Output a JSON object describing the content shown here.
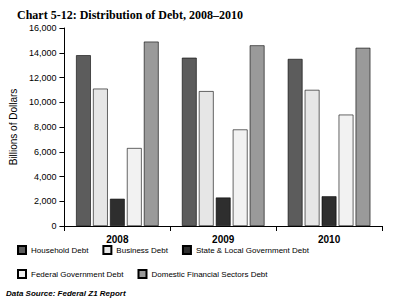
{
  "chart_data": {
    "type": "bar",
    "title": "Chart 5-12: Distribution of Debt, 2008–2010",
    "y_label": "Billions of Dollars",
    "source": "Data Source: Federal Z1 Report",
    "categories": [
      "2008",
      "2009",
      "2010"
    ],
    "series": [
      {
        "name": "Household Debt",
        "color": "#5c5c5c",
        "values": [
          13800,
          13600,
          13500
        ]
      },
      {
        "name": "Business Debt",
        "color": "#e6e6e6",
        "values": [
          11100,
          10900,
          11000
        ]
      },
      {
        "name": "State & Local Government Debt",
        "color": "#2e2e2e",
        "values": [
          2200,
          2300,
          2400
        ]
      },
      {
        "name": "Federal Government Debt",
        "color": "#f2f2f2",
        "values": [
          6300,
          7800,
          9000
        ]
      },
      {
        "name": "Domestic Financial Sectors Debt",
        "color": "#9a9a9a",
        "values": [
          14900,
          14600,
          14400
        ]
      }
    ],
    "ylim": [
      0,
      16000
    ],
    "yticks": [
      0,
      {
        "value": 2000,
        "label": "2,000"
      },
      {
        "value": 4000,
        "label": "4,000"
      },
      {
        "value": 6000,
        "label": "6,000"
      },
      {
        "value": 8000,
        "label": "8,000"
      },
      {
        "value": 10000,
        "label": "10,000"
      },
      {
        "value": 12000,
        "label": "12,000"
      },
      {
        "value": 14000,
        "label": "14,000"
      },
      {
        "value": 16000,
        "label": "16,000"
      }
    ],
    "grid": false,
    "legend": "bottom"
  }
}
